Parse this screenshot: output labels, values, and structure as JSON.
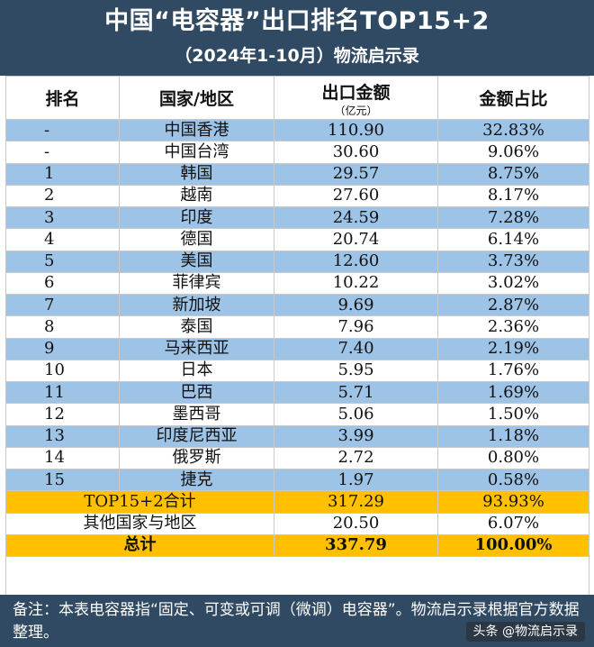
{
  "title": "中国“电容器”出口排名TOP15+2",
  "subtitle": "（2024年1-10月）物流启示录",
  "headers": {
    "rank": "排名",
    "region": "国家/地区",
    "amount": "出口金额",
    "amount_unit": "（亿元）",
    "share": "金额占比"
  },
  "rows": [
    {
      "rank": "-",
      "region": "中国香港",
      "amount": "110.90",
      "share": "32.83%"
    },
    {
      "rank": "-",
      "region": "中国台湾",
      "amount": "30.60",
      "share": "9.06%"
    },
    {
      "rank": "1",
      "region": "韩国",
      "amount": "29.57",
      "share": "8.75%"
    },
    {
      "rank": "2",
      "region": "越南",
      "amount": "27.60",
      "share": "8.17%"
    },
    {
      "rank": "3",
      "region": "印度",
      "amount": "24.59",
      "share": "7.28%"
    },
    {
      "rank": "4",
      "region": "德国",
      "amount": "20.74",
      "share": "6.14%"
    },
    {
      "rank": "5",
      "region": "美国",
      "amount": "12.60",
      "share": "3.73%"
    },
    {
      "rank": "6",
      "region": "菲律宾",
      "amount": "10.22",
      "share": "3.02%"
    },
    {
      "rank": "7",
      "region": "新加坡",
      "amount": "9.69",
      "share": "2.87%"
    },
    {
      "rank": "8",
      "region": "泰国",
      "amount": "7.96",
      "share": "2.36%"
    },
    {
      "rank": "9",
      "region": "马来西亚",
      "amount": "7.40",
      "share": "2.19%"
    },
    {
      "rank": "10",
      "region": "日本",
      "amount": "5.95",
      "share": "1.76%"
    },
    {
      "rank": "11",
      "region": "巴西",
      "amount": "5.71",
      "share": "1.69%"
    },
    {
      "rank": "12",
      "region": "墨西哥",
      "amount": "5.06",
      "share": "1.50%"
    },
    {
      "rank": "13",
      "region": "印度尼西亚",
      "amount": "3.99",
      "share": "1.18%"
    },
    {
      "rank": "14",
      "region": "俄罗斯",
      "amount": "2.72",
      "share": "0.80%"
    },
    {
      "rank": "15",
      "region": "捷克",
      "amount": "1.97",
      "share": "0.58%"
    }
  ],
  "subtotal": {
    "label": "TOP15+2合计",
    "amount": "317.29",
    "share": "93.93%"
  },
  "others": {
    "label": "其他国家与地区",
    "amount": "20.50",
    "share": "6.07%"
  },
  "total": {
    "label": "总计",
    "amount": "337.79",
    "share": "100.00%"
  },
  "footer_note": "备注：本表电容器指“固定、可变或可调（微调）电容器”。物流启示录根据官方数据整理。",
  "watermark": "头条 @物流启示录",
  "colors": {
    "header_band": "#2f4a62",
    "row_blue": "#9dc3e6",
    "row_white": "#ffffff",
    "highlight": "#ffc000"
  }
}
